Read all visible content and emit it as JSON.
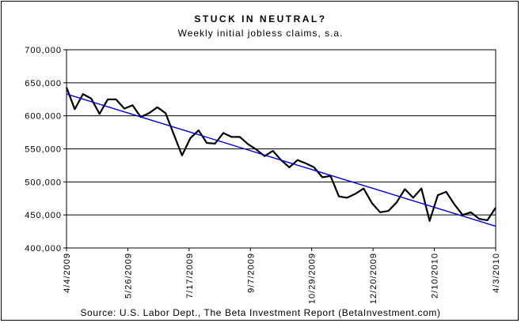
{
  "chart_data": {
    "type": "line",
    "title": "STUCK IN NEUTRAL?",
    "subtitle": "Weekly initial jobless claims, s.a.",
    "source": "Source: U.S. Labor Dept., The Beta Investment Report (BetaInvestment.com)",
    "xlabel": "",
    "ylabel": "",
    "ylim": [
      400000,
      700000
    ],
    "y_ticks": [
      400000,
      450000,
      500000,
      550000,
      600000,
      650000,
      700000
    ],
    "y_tick_labels": [
      "400,000",
      "450,000",
      "500,000",
      "550,000",
      "600,000",
      "650,000",
      "700,000"
    ],
    "x_tick_labels": [
      "4/4/2009",
      "5/26/2009",
      "7/17/2009",
      "9/7/2009",
      "10/29/2009",
      "12/20/2009",
      "2/10/2010",
      "4/3/2010"
    ],
    "grid": true,
    "series": [
      {
        "color": "#000000",
        "values": [
          643000,
          610000,
          633000,
          626000,
          603000,
          625000,
          625000,
          611000,
          616000,
          598000,
          604000,
          613000,
          604000,
          572000,
          540000,
          566000,
          578000,
          559000,
          558000,
          574000,
          568000,
          568000,
          557000,
          549000,
          539000,
          547000,
          533000,
          522000,
          533000,
          528000,
          522000,
          507000,
          509000,
          478000,
          476000,
          482000,
          490000,
          468000,
          454000,
          456000,
          469000,
          489000,
          476000,
          490000,
          441000,
          480000,
          485000,
          466000,
          450000,
          454000,
          444000,
          442000,
          461000
        ]
      },
      {
        "color": "#0000cc",
        "values": [
          633000,
          433000
        ]
      }
    ]
  }
}
